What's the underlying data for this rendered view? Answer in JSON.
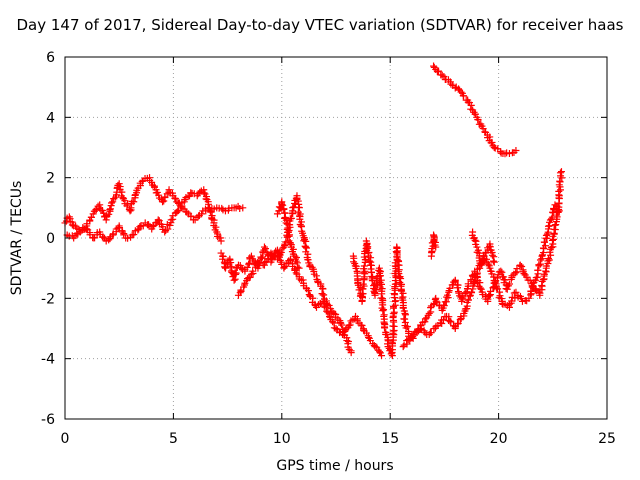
{
  "chart_data": {
    "type": "scatter",
    "title": "Day 147 of 2017, Sidereal Day-to-day VTEC variation (SDTVAR) for receiver haas",
    "xlabel": "GPS time / hours",
    "ylabel": "SDTVAR / TECUs",
    "xlim": [
      0,
      25
    ],
    "ylim": [
      -6,
      6
    ],
    "xticks": [
      0,
      5,
      10,
      15,
      20,
      25
    ],
    "yticks": [
      -6,
      -4,
      -2,
      0,
      2,
      4,
      6
    ],
    "xtick_labels": [
      "0",
      "5",
      "10",
      "15",
      "20",
      "25"
    ],
    "ytick_labels": [
      "-6",
      "-4",
      "-2",
      "0",
      "2",
      "4",
      "6"
    ],
    "grid": true,
    "marker": "+",
    "series": [
      {
        "name": "trace-a",
        "color": "#ff0000",
        "points": [
          [
            0.0,
            0.5
          ],
          [
            0.2,
            0.7
          ],
          [
            0.4,
            0.4
          ],
          [
            0.7,
            0.2
          ],
          [
            1.0,
            0.4
          ],
          [
            1.3,
            0.8
          ],
          [
            1.6,
            1.1
          ],
          [
            1.9,
            0.6
          ],
          [
            2.2,
            1.2
          ],
          [
            2.5,
            1.8
          ],
          [
            2.7,
            1.3
          ],
          [
            3.0,
            0.9
          ],
          [
            3.3,
            1.5
          ],
          [
            3.6,
            1.9
          ],
          [
            3.9,
            2.0
          ],
          [
            4.2,
            1.6
          ],
          [
            4.5,
            1.2
          ],
          [
            4.8,
            1.6
          ],
          [
            5.1,
            1.3
          ],
          [
            5.4,
            1.0
          ],
          [
            5.7,
            0.8
          ],
          [
            6.0,
            0.6
          ],
          [
            6.3,
            0.8
          ],
          [
            6.6,
            1.0
          ],
          [
            7.0,
            1.0
          ],
          [
            7.4,
            0.9
          ],
          [
            7.8,
            1.0
          ],
          [
            8.2,
            1.0
          ]
        ]
      },
      {
        "name": "trace-b",
        "color": "#ff0000",
        "points": [
          [
            0.1,
            0.1
          ],
          [
            0.4,
            0.0
          ],
          [
            0.7,
            0.2
          ],
          [
            1.0,
            0.3
          ],
          [
            1.3,
            0.0
          ],
          [
            1.6,
            0.2
          ],
          [
            1.9,
            -0.1
          ],
          [
            2.2,
            0.1
          ],
          [
            2.5,
            0.4
          ],
          [
            2.8,
            0.0
          ],
          [
            3.1,
            0.1
          ],
          [
            3.4,
            0.3
          ],
          [
            3.7,
            0.5
          ],
          [
            4.0,
            0.3
          ],
          [
            4.3,
            0.6
          ],
          [
            4.6,
            0.2
          ],
          [
            4.9,
            0.6
          ],
          [
            5.2,
            0.9
          ],
          [
            5.5,
            1.2
          ],
          [
            5.8,
            1.5
          ],
          [
            6.1,
            1.4
          ],
          [
            6.4,
            1.6
          ],
          [
            6.7,
            0.9
          ],
          [
            7.0,
            0.2
          ],
          [
            7.2,
            -0.1
          ]
        ]
      },
      {
        "name": "trace-c",
        "color": "#ff0000",
        "points": [
          [
            7.2,
            -0.5
          ],
          [
            7.4,
            -1.0
          ],
          [
            7.6,
            -0.7
          ],
          [
            7.8,
            -1.4
          ],
          [
            8.0,
            -0.9
          ],
          [
            8.3,
            -1.1
          ],
          [
            8.6,
            -0.6
          ],
          [
            8.9,
            -1.0
          ],
          [
            9.2,
            -0.3
          ],
          [
            9.5,
            -0.8
          ],
          [
            9.8,
            -0.4
          ],
          [
            10.1,
            -1.0
          ],
          [
            10.4,
            -0.7
          ],
          [
            10.7,
            -1.2
          ],
          [
            11.0,
            -1.5
          ],
          [
            11.3,
            -1.9
          ],
          [
            11.6,
            -2.3
          ],
          [
            11.9,
            -2.1
          ],
          [
            12.2,
            -2.6
          ],
          [
            12.5,
            -3.0
          ],
          [
            12.8,
            -3.2
          ],
          [
            13.1,
            -2.9
          ],
          [
            13.4,
            -2.6
          ],
          [
            13.7,
            -2.9
          ],
          [
            14.0,
            -3.3
          ],
          [
            14.3,
            -3.6
          ],
          [
            14.6,
            -3.9
          ]
        ]
      },
      {
        "name": "trace-d",
        "color": "#ff0000",
        "points": [
          [
            8.0,
            -1.9
          ],
          [
            8.3,
            -1.5
          ],
          [
            8.6,
            -1.2
          ],
          [
            8.9,
            -0.8
          ],
          [
            9.2,
            -0.9
          ],
          [
            9.5,
            -0.5
          ],
          [
            9.8,
            -0.7
          ],
          [
            10.1,
            -0.3
          ],
          [
            10.3,
            0.2
          ],
          [
            10.5,
            0.9
          ],
          [
            10.7,
            1.4
          ],
          [
            10.9,
            0.4
          ],
          [
            11.1,
            -0.3
          ],
          [
            11.3,
            -0.9
          ],
          [
            11.5,
            -1.2
          ],
          [
            11.8,
            -1.6
          ],
          [
            12.1,
            -2.2
          ],
          [
            12.4,
            -2.5
          ],
          [
            12.7,
            -2.8
          ],
          [
            13.0,
            -3.4
          ],
          [
            13.2,
            -3.8
          ]
        ]
      },
      {
        "name": "trace-e",
        "color": "#ff0000",
        "points": [
          [
            9.8,
            0.8
          ],
          [
            10.0,
            1.2
          ],
          [
            10.2,
            0.5
          ],
          [
            10.4,
            -0.2
          ],
          [
            10.6,
            -0.6
          ],
          [
            10.8,
            -1.0
          ]
        ]
      },
      {
        "name": "trace-f",
        "color": "#ff0000",
        "points": [
          [
            13.3,
            -0.6
          ],
          [
            13.5,
            -1.4
          ],
          [
            13.7,
            -2.1
          ],
          [
            13.9,
            -0.1
          ],
          [
            14.1,
            -0.8
          ],
          [
            14.3,
            -1.9
          ],
          [
            14.5,
            -1.0
          ],
          [
            14.7,
            -2.6
          ],
          [
            14.9,
            -3.6
          ],
          [
            15.1,
            -3.9
          ],
          [
            15.3,
            -0.3
          ],
          [
            15.5,
            -1.6
          ],
          [
            15.7,
            -2.8
          ],
          [
            15.9,
            -3.4
          ],
          [
            16.2,
            -3.1
          ],
          [
            16.5,
            -2.8
          ],
          [
            16.8,
            -2.5
          ],
          [
            17.1,
            -2.0
          ],
          [
            17.4,
            -2.4
          ],
          [
            17.7,
            -1.8
          ],
          [
            18.0,
            -1.4
          ],
          [
            18.3,
            -2.1
          ],
          [
            18.6,
            -1.6
          ],
          [
            18.9,
            -1.1
          ],
          [
            19.2,
            -1.7
          ],
          [
            19.5,
            -2.1
          ],
          [
            19.8,
            -1.5
          ],
          [
            20.1,
            -1.1
          ],
          [
            20.4,
            -1.7
          ],
          [
            20.7,
            -1.2
          ],
          [
            21.0,
            -0.9
          ],
          [
            21.3,
            -1.3
          ],
          [
            21.6,
            -1.6
          ],
          [
            21.9,
            -1.9
          ],
          [
            22.2,
            -1.0
          ],
          [
            22.5,
            -0.2
          ],
          [
            22.7,
            0.7
          ],
          [
            22.8,
            1.4
          ],
          [
            22.9,
            2.2
          ]
        ]
      },
      {
        "name": "trace-g",
        "color": "#ff0000",
        "points": [
          [
            15.6,
            -3.6
          ],
          [
            16.0,
            -3.3
          ],
          [
            16.4,
            -3.0
          ],
          [
            16.8,
            -3.2
          ],
          [
            17.2,
            -2.9
          ],
          [
            17.6,
            -2.6
          ],
          [
            18.0,
            -3.0
          ],
          [
            18.4,
            -2.5
          ],
          [
            18.7,
            -1.9
          ],
          [
            19.0,
            -1.2
          ],
          [
            19.3,
            -0.6
          ],
          [
            19.6,
            -1.0
          ],
          [
            19.9,
            -1.6
          ],
          [
            20.2,
            -2.2
          ],
          [
            20.5,
            -2.3
          ],
          [
            20.8,
            -1.8
          ],
          [
            21.1,
            -2.1
          ],
          [
            21.4,
            -2.0
          ],
          [
            21.7,
            -1.4
          ],
          [
            22.0,
            -0.6
          ],
          [
            22.3,
            0.3
          ],
          [
            22.6,
            1.1
          ],
          [
            22.8,
            0.9
          ]
        ]
      },
      {
        "name": "trace-h",
        "color": "#ff0000",
        "points": [
          [
            16.9,
            -0.6
          ],
          [
            17.0,
            0.1
          ],
          [
            17.1,
            -0.3
          ]
        ]
      },
      {
        "name": "trace-i",
        "color": "#ff0000",
        "points": [
          [
            18.8,
            0.2
          ],
          [
            19.0,
            -0.3
          ],
          [
            19.2,
            -0.9
          ],
          [
            19.4,
            -0.5
          ],
          [
            19.6,
            -0.2
          ],
          [
            19.8,
            -0.8
          ]
        ]
      },
      {
        "name": "trace-j",
        "color": "#ff0000",
        "points": [
          [
            17.0,
            5.7
          ],
          [
            17.4,
            5.4
          ],
          [
            17.8,
            5.1
          ],
          [
            18.2,
            4.9
          ],
          [
            18.6,
            4.5
          ],
          [
            19.0,
            4.0
          ],
          [
            19.4,
            3.5
          ],
          [
            19.8,
            3.0
          ],
          [
            20.2,
            2.8
          ],
          [
            20.5,
            2.8
          ],
          [
            20.8,
            2.9
          ]
        ]
      }
    ]
  }
}
